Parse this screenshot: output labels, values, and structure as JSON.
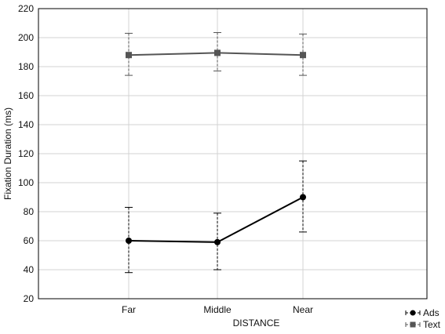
{
  "chart_data": {
    "type": "line",
    "title": "",
    "xlabel": "DISTANCE",
    "ylabel": "Fixation Duration (ms)",
    "categories": [
      "Far",
      "Middle",
      "Near"
    ],
    "ylim": [
      20,
      220
    ],
    "yticks": [
      20,
      40,
      60,
      80,
      100,
      120,
      140,
      160,
      180,
      200,
      220
    ],
    "grid": true,
    "legend_position": "bottom-right",
    "series": [
      {
        "name": "Ads",
        "values": [
          60,
          59,
          90
        ],
        "error_low": [
          38,
          40,
          66
        ],
        "error_high": [
          83,
          79,
          115
        ],
        "color": "#000000",
        "marker": "circle"
      },
      {
        "name": "Text",
        "values": [
          188,
          189.5,
          188
        ],
        "error_low": [
          174,
          177,
          174
        ],
        "error_high": [
          203,
          203.5,
          202.5
        ],
        "color": "#555555",
        "marker": "square"
      }
    ]
  }
}
